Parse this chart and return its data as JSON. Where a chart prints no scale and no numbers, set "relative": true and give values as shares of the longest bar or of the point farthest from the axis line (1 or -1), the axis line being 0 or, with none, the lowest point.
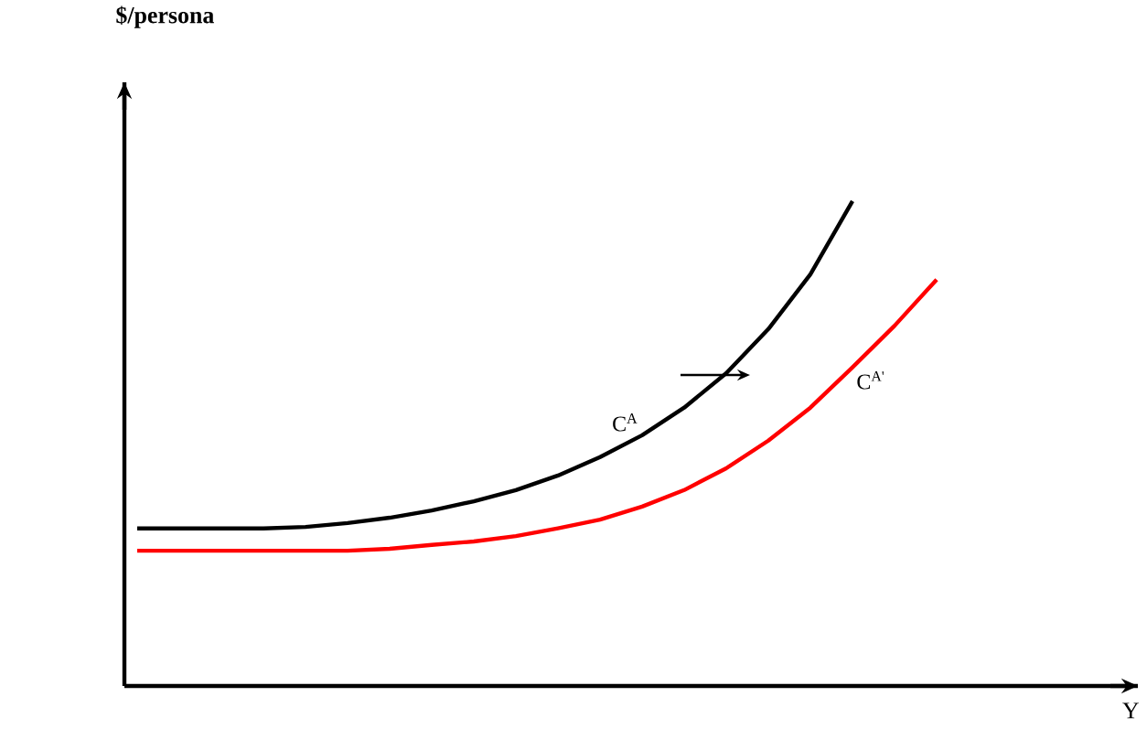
{
  "chart_data": {
    "type": "line",
    "relative": true,
    "annotations": [
      "$/persona",
      "Y"
    ],
    "categories": [
      null,
      null,
      null,
      null,
      null,
      null,
      null,
      null,
      null,
      null,
      null,
      null,
      null,
      null,
      null,
      null,
      null,
      null,
      null,
      null
    ],
    "series": [
      {
        "name": "C$^{A}$",
        "color": "#000000",
        "values": [
          0.325,
          0.325,
          0.325,
          0.325,
          0.328,
          0.336,
          0.347,
          0.362,
          0.381,
          0.404,
          0.434,
          0.472,
          0.517,
          0.574,
          0.645,
          0.736,
          0.849,
          1.0,
          null,
          null
        ]
      },
      {
        "name": "C$^{A'}$",
        "color": "#ff0000",
        "values": [
          0.279,
          0.279,
          0.279,
          0.279,
          0.279,
          0.279,
          0.283,
          0.291,
          0.298,
          0.309,
          0.325,
          0.343,
          0.37,
          0.404,
          0.449,
          0.506,
          0.574,
          0.657,
          0.743,
          0.838
        ]
      }
    ],
    "marker": "none",
    "line_style": "solid"
  }
}
